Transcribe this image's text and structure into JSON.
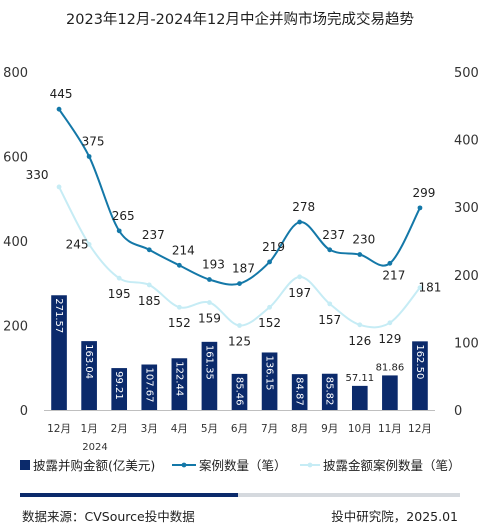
{
  "chart_data": {
    "type": "bar",
    "title": "2023年12月-2024年12月中企并购市场完成交易趋势",
    "categories": [
      "12月",
      "1月",
      "2月",
      "3月",
      "4月",
      "5月",
      "6月",
      "7月",
      "8月",
      "9月",
      "10月",
      "11月",
      "12月"
    ],
    "year_label": "2024",
    "y_left": {
      "ticks": [
        "0",
        "200",
        "400",
        "600",
        "800"
      ],
      "ylim": [
        0,
        800
      ]
    },
    "y_right": {
      "ticks": [
        "0",
        "100",
        "200",
        "300",
        "400",
        "500"
      ],
      "ylim": [
        0,
        500
      ]
    },
    "series": [
      {
        "name": "披露并购金额(亿美元)",
        "kind": "bar",
        "axis": "left",
        "values": [
          271.57,
          163.04,
          99.21,
          107.67,
          122.44,
          161.35,
          85.46,
          136.15,
          84.87,
          85.82,
          57.11,
          81.86,
          162.5
        ],
        "labels": [
          "271.57",
          "163.04",
          "99.21",
          "107.67",
          "122.44",
          "161.35",
          "85.46",
          "136.15",
          "84.87",
          "85.82",
          "57.11",
          "81.86",
          "162.50"
        ]
      },
      {
        "name": "案例数量（笔）",
        "kind": "line",
        "axis": "right",
        "values": [
          445,
          375,
          265,
          237,
          214,
          193,
          187,
          219,
          278,
          237,
          230,
          217,
          299
        ],
        "labels": [
          "445",
          "375",
          "265",
          "237",
          "214",
          "193",
          "187",
          "219",
          "278",
          "237",
          "230",
          "217",
          "299"
        ]
      },
      {
        "name": "披露金额案例数量（笔）",
        "kind": "line",
        "axis": "right",
        "values": [
          330,
          245,
          195,
          185,
          152,
          159,
          125,
          152,
          197,
          157,
          126,
          129,
          181
        ],
        "labels": [
          "330",
          "245",
          "195",
          "185",
          "152",
          "159",
          "125",
          "152",
          "197",
          "157",
          "126",
          "129",
          "181"
        ]
      }
    ],
    "colors": {
      "bar": "#0b2a6b",
      "line_dark": "#1478a8",
      "line_light": "#c6ecf5"
    },
    "legend": [
      "披露并购金额(亿美元)",
      "案例数量（笔）",
      "披露金额案例数量（笔）"
    ],
    "legend_position": "bottom"
  },
  "footer": {
    "source": "数据来源：CVSource投中数据",
    "publisher": "投中研究院，2025.01"
  }
}
